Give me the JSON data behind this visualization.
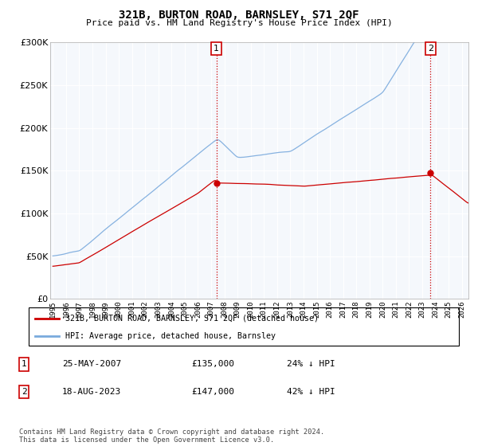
{
  "title": "321B, BURTON ROAD, BARNSLEY, S71 2QF",
  "subtitle": "Price paid vs. HM Land Registry's House Price Index (HPI)",
  "legend_line1": "321B, BURTON ROAD, BARNSLEY, S71 2QF (detached house)",
  "legend_line2": "HPI: Average price, detached house, Barnsley",
  "point1_date": "25-MAY-2007",
  "point1_price": "£135,000",
  "point1_hpi": "24% ↓ HPI",
  "point2_date": "18-AUG-2023",
  "point2_price": "£147,000",
  "point2_hpi": "42% ↓ HPI",
  "footnote": "Contains HM Land Registry data © Crown copyright and database right 2024.\nThis data is licensed under the Open Government Licence v3.0.",
  "red_color": "#cc0000",
  "blue_color": "#7aaadd",
  "vline_color": "#cc0000",
  "ylim": [
    0,
    300000
  ],
  "xlim_start": 1994.8,
  "xlim_end": 2026.5,
  "sale1_year": 2007.4,
  "sale1_price": 135000,
  "sale2_year": 2023.62,
  "sale2_price": 147000,
  "bg_color": "#f0f4f8"
}
